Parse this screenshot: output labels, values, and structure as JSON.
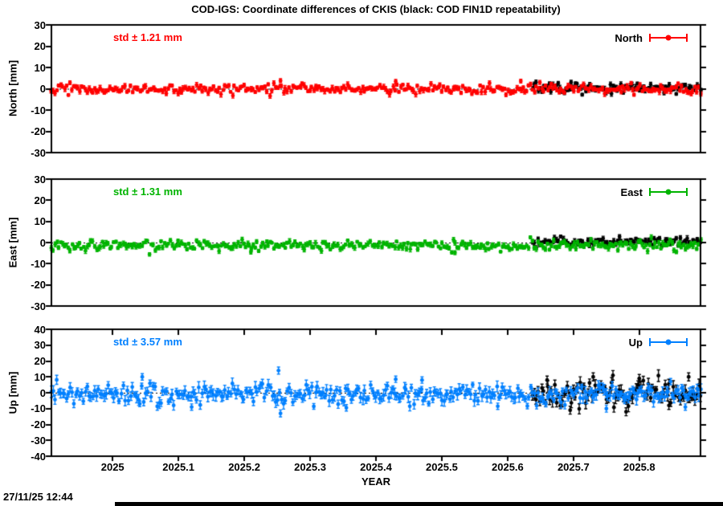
{
  "chart_data": {
    "type": "scatter",
    "title": "COD-IGS: Coordinate differences of CKIS (black: COD FIN1D repeatability)",
    "xlabel": "YEAR",
    "timestamp": "27/11/25 12:44",
    "x_range": [
      2024.907,
      2025.893
    ],
    "x_ticks": [
      2025.0,
      2025.1,
      2025.2,
      2025.3,
      2025.4,
      2025.5,
      2025.6,
      2025.7,
      2025.8
    ],
    "x_tick_labels": [
      "2025",
      "2025.1",
      "2025.2",
      "2025.3",
      "2025.4",
      "2025.5",
      "2025.6",
      "2025.7",
      "2025.8"
    ],
    "grid": false,
    "zero_line": "dotted",
    "legend_position": "top-right-inside",
    "marker": "filled-circle-with-errorbars",
    "panels": [
      {
        "name": "North",
        "ylabel": "North [mm]",
        "legend": "North",
        "std_label": "std ± 1.21 mm",
        "std_mm": 1.21,
        "color": "#ff0000",
        "overlay_color": "#000000",
        "ylim": [
          -30,
          30
        ],
        "y_ticks": [
          30,
          20,
          10,
          0,
          -10,
          -20,
          -30
        ],
        "y_tick_labels": [
          "30",
          "20",
          "10",
          "0",
          "-10",
          "-20",
          "-30"
        ],
        "series": [
          {
            "name": "COD FIN1D repeatability",
            "color": "#000000",
            "x_start": 2025.638,
            "x_end": 2025.893,
            "n": 92,
            "mean": 0.4,
            "std": 1.15,
            "err_mm": 0.9,
            "seed": 104,
            "outliers": []
          },
          {
            "name": "COD-IGS coordinate difference",
            "color": "#ff0000",
            "x_start": 2024.907,
            "x_end": 2025.893,
            "n": 345,
            "mean": -0.1,
            "std": 1.21,
            "err_mm": 0.9,
            "seed": 101,
            "outliers": [
              {
                "x": 2025.255,
                "y": 3.8,
                "err": 0.9
              },
              {
                "x": 2025.43,
                "y": 3.5,
                "err": 0.9
              },
              {
                "x": 2025.62,
                "y": 3.6,
                "err": 0.9
              }
            ]
          }
        ]
      },
      {
        "name": "East",
        "ylabel": "East [mm]",
        "legend": "East",
        "std_label": "std ± 1.31 mm",
        "std_mm": 1.31,
        "color": "#00b400",
        "overlay_color": "#000000",
        "ylim": [
          -30,
          30
        ],
        "y_ticks": [
          30,
          20,
          10,
          0,
          -10,
          -20,
          -30
        ],
        "y_tick_labels": [
          "30",
          "20",
          "10",
          "0",
          "-10",
          "-20",
          "-30"
        ],
        "series": [
          {
            "name": "COD FIN1D repeatability",
            "color": "#000000",
            "x_start": 2025.638,
            "x_end": 2025.893,
            "n": 92,
            "mean": 0.4,
            "std": 1.1,
            "err_mm": 0.9,
            "seed": 204,
            "outliers": [
              {
                "x": 2025.77,
                "y": 2.8,
                "err": 0.9
              }
            ]
          },
          {
            "name": "COD-IGS coordinate difference",
            "color": "#00b400",
            "x_start": 2024.907,
            "x_end": 2025.893,
            "n": 345,
            "mean": -1.4,
            "std": 1.31,
            "err_mm": 0.9,
            "seed": 201,
            "outliers": [
              {
                "x": 2025.21,
                "y": -4.5,
                "err": 0.9
              },
              {
                "x": 2025.52,
                "y": -4.8,
                "err": 0.9
              }
            ]
          }
        ]
      },
      {
        "name": "Up",
        "ylabel": "Up [mm]",
        "legend": "Up",
        "std_label": "std ± 3.57 mm",
        "std_mm": 3.57,
        "color": "#0080ff",
        "overlay_color": "#000000",
        "ylim": [
          -40,
          40
        ],
        "y_ticks": [
          40,
          30,
          20,
          10,
          0,
          -10,
          -20,
          -30,
          -40
        ],
        "y_tick_labels": [
          "40",
          "30",
          "20",
          "10",
          "0",
          "-10",
          "-20",
          "-30",
          "-40"
        ],
        "series": [
          {
            "name": "COD FIN1D repeatability",
            "color": "#000000",
            "x_start": 2025.638,
            "x_end": 2025.893,
            "n": 92,
            "mean": -0.8,
            "std": 4.2,
            "err_mm": 2.8,
            "seed": 304,
            "outliers": [
              {
                "x": 2025.66,
                "y": 8,
                "err": 2.5
              },
              {
                "x": 2025.695,
                "y": -11,
                "err": 2.5
              },
              {
                "x": 2025.73,
                "y": 10,
                "err": 2.5
              },
              {
                "x": 2025.76,
                "y": 11,
                "err": 3.0
              },
              {
                "x": 2025.78,
                "y": -12,
                "err": 2.5
              },
              {
                "x": 2025.8,
                "y": 9,
                "err": 2.5
              },
              {
                "x": 2025.845,
                "y": -8,
                "err": 2.5
              },
              {
                "x": 2025.875,
                "y": 10,
                "err": 2.5
              }
            ]
          },
          {
            "name": "COD-IGS coordinate difference",
            "color": "#0080ff",
            "x_start": 2024.907,
            "x_end": 2025.893,
            "n": 345,
            "mean": -0.8,
            "std": 3.2,
            "err_mm": 2.6,
            "seed": 301,
            "outliers": [
              {
                "x": 2025.045,
                "y": 10,
                "err": 2.0
              },
              {
                "x": 2025.12,
                "y": -9,
                "err": 2.0
              },
              {
                "x": 2025.252,
                "y": 14,
                "err": 2.2
              },
              {
                "x": 2025.255,
                "y": -13,
                "err": 2.2
              },
              {
                "x": 2025.355,
                "y": -9.5,
                "err": 2.0
              },
              {
                "x": 2025.43,
                "y": 8.5,
                "err": 2.0
              },
              {
                "x": 2025.47,
                "y": 8,
                "err": 2.0
              },
              {
                "x": 2025.585,
                "y": -8.5,
                "err": 2.0
              },
              {
                "x": 2025.75,
                "y": -10,
                "err": 2.2
              },
              {
                "x": 2025.87,
                "y": -9,
                "err": 2.0
              }
            ]
          }
        ]
      }
    ]
  }
}
